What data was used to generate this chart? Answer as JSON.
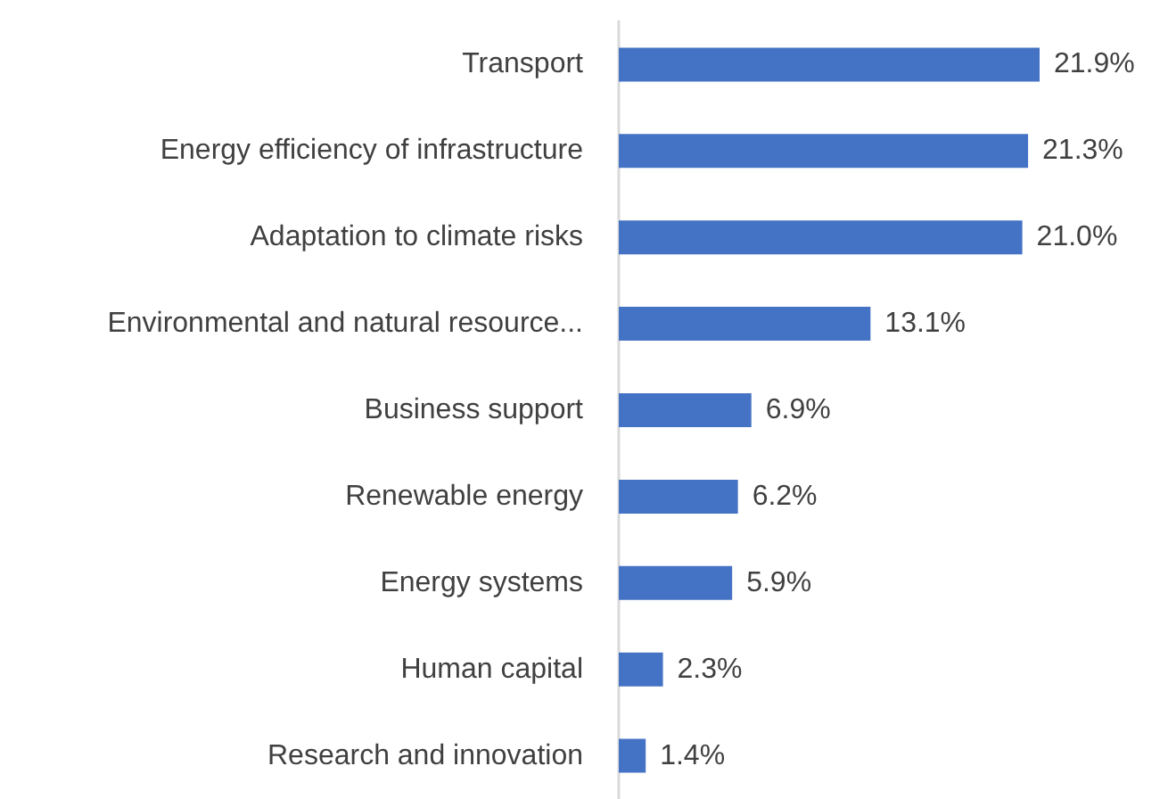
{
  "chart_data": {
    "type": "bar",
    "orientation": "horizontal",
    "categories": [
      "Transport",
      "Energy efficiency of infrastructure",
      "Adaptation to climate risks",
      "Environmental and natural resource...",
      "Business support",
      "Renewable energy",
      "Energy systems",
      "Human capital",
      "Research and innovation"
    ],
    "values": [
      21.9,
      21.3,
      21.0,
      13.1,
      6.9,
      6.2,
      5.9,
      2.3,
      1.4
    ],
    "value_labels": [
      "21.9%",
      "21.3%",
      "21.0%",
      "13.1%",
      "6.9%",
      "6.2%",
      "5.9%",
      "2.3%",
      "1.4%"
    ],
    "color": "#4472c4"
  }
}
